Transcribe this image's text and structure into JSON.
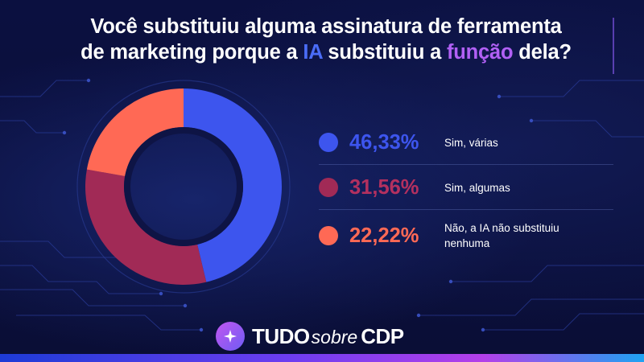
{
  "title": {
    "line1": "Você substituiu alguma assinatura de ferramenta",
    "line2_part1": "de marketing porque a ",
    "line2_highlight1": "IA",
    "line2_part2": " substituiu a ",
    "line2_highlight2": "função",
    "line2_part3": " dela?"
  },
  "colors": {
    "sim_varias": "#3d55ee",
    "sim_algumas": "#a12a56",
    "nao": "#ff6955",
    "accent_ia": "#4a6cf7",
    "accent_funcao": "#b160f5"
  },
  "chart_data": {
    "type": "pie",
    "variant": "donut",
    "title": "Você substituiu alguma assinatura de ferramenta de marketing porque a IA substituiu a função dela?",
    "categories": [
      "Sim, várias",
      "Sim, algumas",
      "Não, a IA não substituiu nenhuma"
    ],
    "values": [
      46.33,
      31.56,
      22.22
    ],
    "value_labels": [
      "46,33%",
      "31,56%",
      "22,22%"
    ],
    "colors": [
      "#3d55ee",
      "#a12a56",
      "#ff6955"
    ],
    "unit": "%",
    "start_angle_deg": 0,
    "direction": "clockwise",
    "legend_position": "right"
  },
  "legend": [
    {
      "value": "46,33%",
      "label_line1": "Sim, várias",
      "label_line2": ""
    },
    {
      "value": "31,56%",
      "label_line1": "Sim, algumas",
      "label_line2": ""
    },
    {
      "value": "22,22%",
      "label_line1": "Não, a IA não substituiu",
      "label_line2": "nenhuma"
    }
  ],
  "brand": {
    "part1": "TUDO",
    "part2": "sobre",
    "part3": "CDP",
    "icon": "sparkle-chat-icon"
  }
}
